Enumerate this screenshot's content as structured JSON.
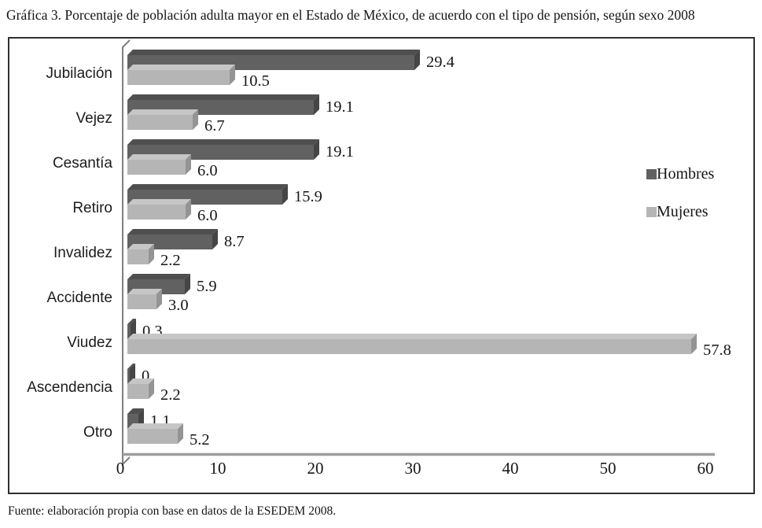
{
  "title": "Gráfica 3. Porcentaje de población adulta mayor en el Estado de México, de acuerdo con el tipo de pensión, según sexo 2008",
  "source": "Fuente: elaboración propia con base en datos de la ESEDEM 2008.",
  "chart_data": {
    "type": "bar",
    "orientation": "horizontal",
    "style": "3d-beveled",
    "title": "Gráfica 3. Porcentaje de población adulta mayor en el Estado de México, de acuerdo con el tipo de pensión, según sexo 2008",
    "categories": [
      "Jubilación",
      "Vejez",
      "Cesantía",
      "Retiro",
      "Invalidez",
      "Accidente",
      "Viudez",
      "Ascendencia",
      "Otro"
    ],
    "series": [
      {
        "name": "Hombres",
        "values": [
          29.4,
          19.1,
          19.1,
          15.9,
          8.7,
          5.9,
          0.3,
          0,
          1.1
        ],
        "labels": [
          "29.4",
          "19.1",
          "19.1",
          "15.9",
          "8.7",
          "5.9",
          "0.3",
          "0",
          "1.1"
        ],
        "color": "#616161",
        "color_top": "#4f4f4f",
        "color_side": "#454545"
      },
      {
        "name": "Mujeres",
        "values": [
          10.5,
          6.7,
          6.0,
          6.0,
          2.2,
          3.0,
          57.8,
          2.2,
          5.2
        ],
        "labels": [
          "10.5",
          "6.7",
          "6.0",
          "6.0",
          "2.2",
          "3.0",
          "57.8",
          "2.2",
          "5.2"
        ],
        "color": "#b5b5b5",
        "color_top": "#c6c6c6",
        "color_side": "#949494"
      }
    ],
    "x_ticks": [
      "0",
      "10",
      "20",
      "30",
      "40",
      "50",
      "60"
    ],
    "x_tick_values": [
      0,
      10,
      20,
      30,
      40,
      50,
      60
    ],
    "xlim": [
      0,
      60
    ],
    "xlabel": "",
    "ylabel": "",
    "grid": false,
    "legend_position": "right-inside",
    "data_labels_shown": true,
    "axis_color": "#7f7f7f",
    "baseline_color": "#9c9c9c"
  }
}
